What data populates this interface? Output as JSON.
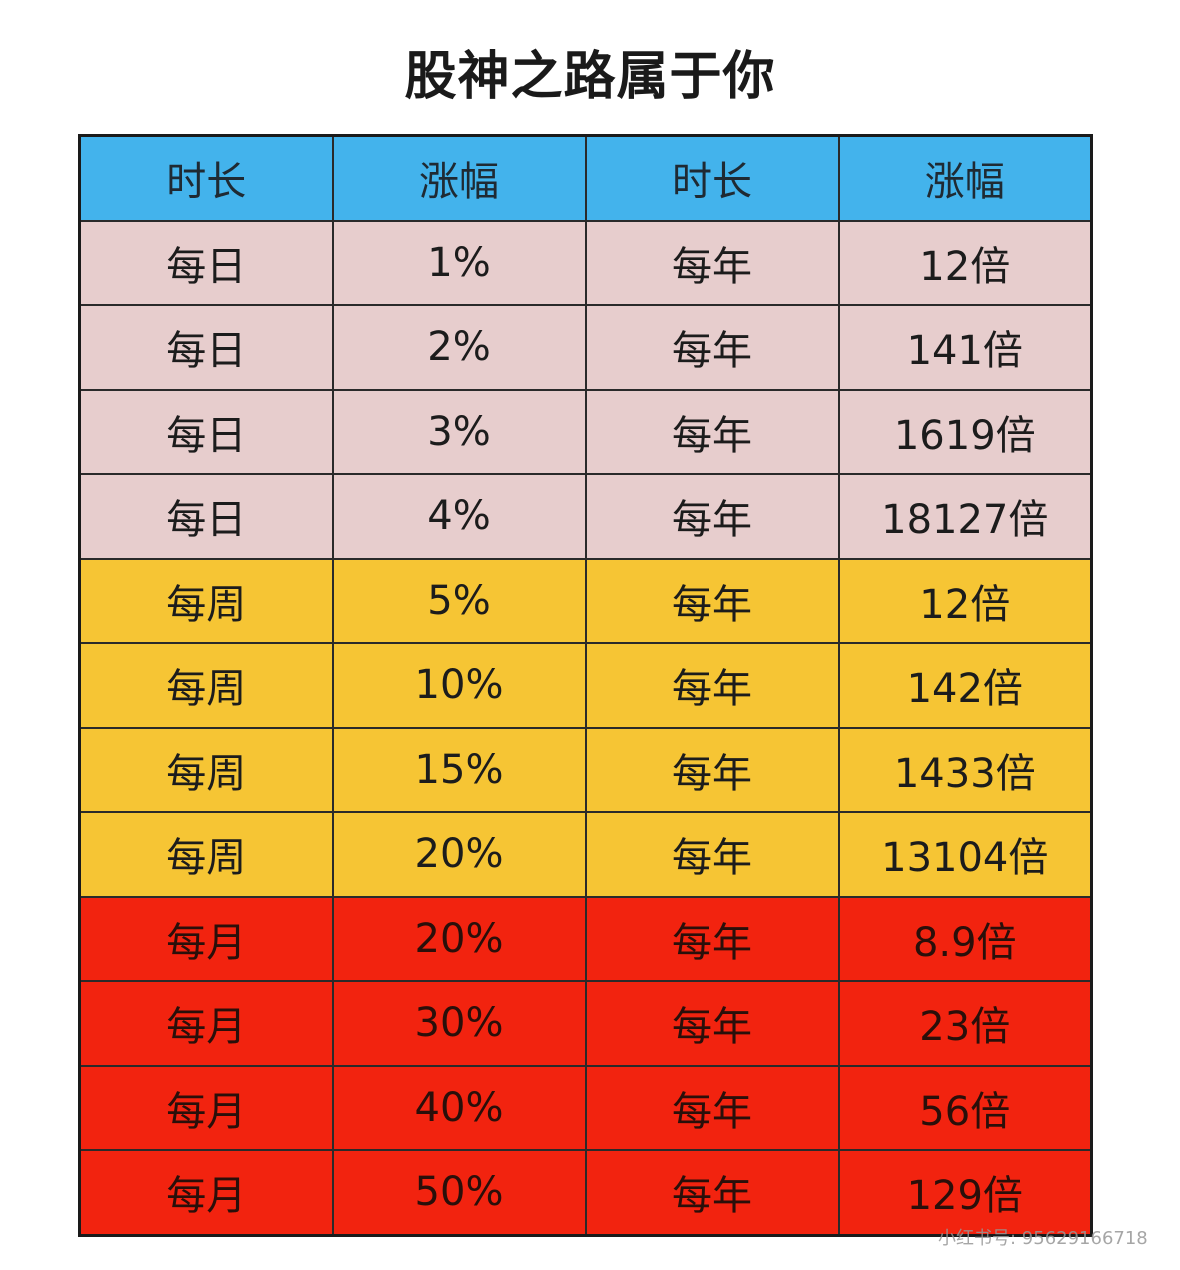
{
  "title": "股神之路属于你",
  "table": {
    "headers": [
      "时长",
      "涨幅",
      "时长",
      "涨幅"
    ],
    "rows": [
      {
        "period": "每日",
        "gain": "1%",
        "horizon": "每年",
        "result": "12倍",
        "group": "pink"
      },
      {
        "period": "每日",
        "gain": "2%",
        "horizon": "每年",
        "result": "141倍",
        "group": "pink"
      },
      {
        "period": "每日",
        "gain": "3%",
        "horizon": "每年",
        "result": "1619倍",
        "group": "pink"
      },
      {
        "period": "每日",
        "gain": "4%",
        "horizon": "每年",
        "result": "18127倍",
        "group": "pink"
      },
      {
        "period": "每周",
        "gain": "5%",
        "horizon": "每年",
        "result": "12倍",
        "group": "yellow"
      },
      {
        "period": "每周",
        "gain": "10%",
        "horizon": "每年",
        "result": "142倍",
        "group": "yellow"
      },
      {
        "period": "每周",
        "gain": "15%",
        "horizon": "每年",
        "result": "1433倍",
        "group": "yellow"
      },
      {
        "period": "每周",
        "gain": "20%",
        "horizon": "每年",
        "result": "13104倍",
        "group": "yellow"
      },
      {
        "period": "每月",
        "gain": "20%",
        "horizon": "每年",
        "result": "8.9倍",
        "group": "red"
      },
      {
        "period": "每月",
        "gain": "30%",
        "horizon": "每年",
        "result": "23倍",
        "group": "red"
      },
      {
        "period": "每月",
        "gain": "40%",
        "horizon": "每年",
        "result": "56倍",
        "group": "red"
      },
      {
        "period": "每月",
        "gain": "50%",
        "horizon": "每年",
        "result": "129倍",
        "group": "red"
      }
    ]
  },
  "colors": {
    "header_bg": "#43b3ec",
    "pink_bg": "#e7cdcd",
    "yellow_bg": "#f6c534",
    "red_bg": "#f2230f"
  },
  "watermark": {
    "logo": "小红书",
    "text": "小红书号: 95629166718"
  }
}
